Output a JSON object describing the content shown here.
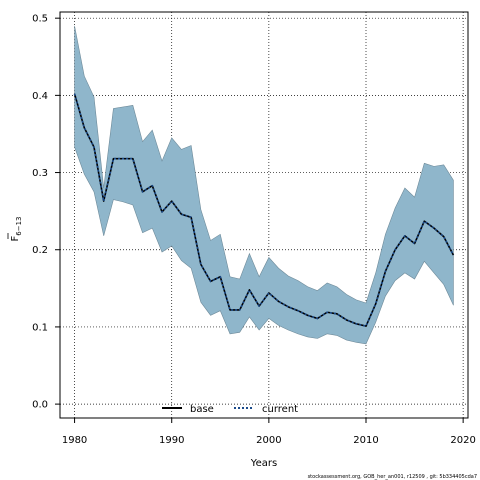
{
  "chart_data": {
    "type": "line",
    "title": "",
    "xlabel": "Years",
    "ylabel_main": "F",
    "ylabel_sub": "6−13",
    "xlim": [
      1978.5,
      2020.5
    ],
    "ylim": [
      -0.018,
      0.508
    ],
    "x_ticks": [
      1980,
      1990,
      2000,
      2010,
      2020
    ],
    "y_ticks": [
      0.0,
      0.1,
      0.2,
      0.3,
      0.4,
      0.5
    ],
    "y_tick_labels": [
      "0.0",
      "0.1",
      "0.2",
      "0.3",
      "0.4",
      "0.5"
    ],
    "grid": true,
    "legend_position": "bottom-center",
    "x": [
      1980,
      1981,
      1982,
      1983,
      1984,
      1985,
      1986,
      1987,
      1988,
      1989,
      1990,
      1991,
      1992,
      1993,
      1994,
      1995,
      1996,
      1997,
      1998,
      1999,
      2000,
      2001,
      2002,
      2003,
      2004,
      2005,
      2006,
      2007,
      2008,
      2009,
      2010,
      2011,
      2012,
      2013,
      2014,
      2015,
      2016,
      2017,
      2018,
      2019
    ],
    "band": {
      "upper": [
        0.49,
        0.425,
        0.398,
        0.28,
        0.383,
        0.385,
        0.387,
        0.34,
        0.355,
        0.315,
        0.345,
        0.33,
        0.335,
        0.252,
        0.212,
        0.22,
        0.165,
        0.162,
        0.195,
        0.165,
        0.19,
        0.176,
        0.166,
        0.16,
        0.152,
        0.147,
        0.157,
        0.152,
        0.142,
        0.135,
        0.131,
        0.17,
        0.22,
        0.254,
        0.28,
        0.268,
        0.312,
        0.308,
        0.31,
        0.29
      ],
      "lower": [
        0.333,
        0.298,
        0.275,
        0.218,
        0.265,
        0.262,
        0.258,
        0.222,
        0.228,
        0.197,
        0.205,
        0.186,
        0.176,
        0.132,
        0.115,
        0.121,
        0.091,
        0.093,
        0.113,
        0.096,
        0.111,
        0.102,
        0.096,
        0.091,
        0.087,
        0.085,
        0.091,
        0.089,
        0.083,
        0.08,
        0.078,
        0.106,
        0.14,
        0.16,
        0.17,
        0.162,
        0.185,
        0.17,
        0.155,
        0.128
      ],
      "color": "#8fb6cb",
      "stroke": "#6e8a99"
    },
    "series": [
      {
        "name": "base",
        "color": "#000000",
        "style": "solid",
        "values": [
          0.402,
          0.358,
          0.333,
          0.263,
          0.318,
          0.318,
          0.318,
          0.275,
          0.283,
          0.249,
          0.263,
          0.246,
          0.242,
          0.181,
          0.159,
          0.165,
          0.122,
          0.122,
          0.148,
          0.127,
          0.144,
          0.133,
          0.126,
          0.121,
          0.115,
          0.111,
          0.119,
          0.117,
          0.109,
          0.104,
          0.101,
          0.13,
          0.172,
          0.2,
          0.218,
          0.208,
          0.237,
          0.228,
          0.217,
          0.193
        ]
      },
      {
        "name": "current",
        "color": "#1a4a8a",
        "style": "dotted",
        "values": [
          0.402,
          0.358,
          0.333,
          0.263,
          0.318,
          0.318,
          0.318,
          0.275,
          0.283,
          0.249,
          0.263,
          0.246,
          0.242,
          0.181,
          0.159,
          0.165,
          0.122,
          0.122,
          0.148,
          0.127,
          0.144,
          0.133,
          0.126,
          0.121,
          0.115,
          0.111,
          0.119,
          0.117,
          0.109,
          0.104,
          0.101,
          0.13,
          0.172,
          0.2,
          0.218,
          0.208,
          0.237,
          0.228,
          0.217,
          0.193
        ]
      }
    ],
    "footer": "stockassessment.org, GOB_her_an001, r12509 , git: 5b334405cda7"
  }
}
